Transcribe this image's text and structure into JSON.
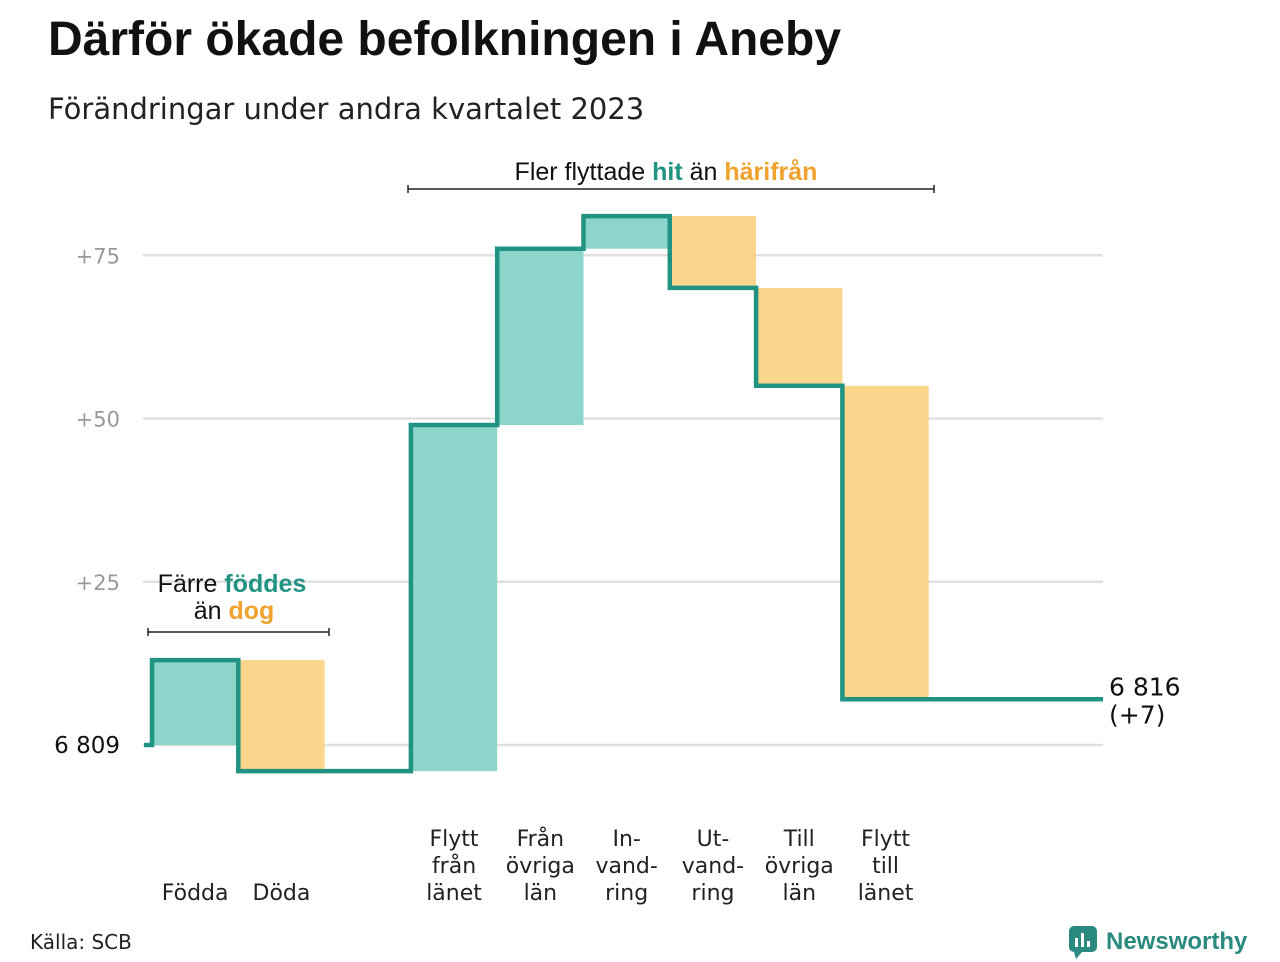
{
  "title": "Därför ökade befolkningen i Aneby",
  "subtitle": "Förändringar under andra kvartalet 2023",
  "source": "Källa: SCB",
  "brand": "Newsworthy",
  "colors": {
    "increase": "#8dd4cb",
    "decrease": "#fad58c",
    "line": "#219383",
    "grid": "#e0e0e0",
    "tick": "#999999",
    "hit": "#219383",
    "harifran": "#f0a22e"
  },
  "annotations": {
    "top": {
      "pre": "Fler flyttade ",
      "hit": "hit",
      "mid": " än ",
      "harifran": "härifrån"
    },
    "left": {
      "line1_pre": "Färre ",
      "line1_hl": "föddes",
      "line2_pre": "än ",
      "line2_hl": "dog"
    }
  },
  "chart_data": {
    "type": "waterfall",
    "title": "Därför ökade befolkningen i Aneby",
    "subtitle": "Förändringar under andra kvartalet 2023",
    "start_label": "6  809",
    "end_label": "6 816",
    "end_change_label": "(+7)",
    "start_value": 6809,
    "end_value": 6816,
    "yticks": [
      {
        "value": 25,
        "label": "+25"
      },
      {
        "value": 50,
        "label": "+50"
      },
      {
        "value": 75,
        "label": "+75"
      }
    ],
    "ylim": [
      -5,
      85
    ],
    "grid": true,
    "steps": [
      {
        "label": [
          "Födda"
        ],
        "change": 13,
        "kind": "increase"
      },
      {
        "label": [
          "Döda"
        ],
        "change": -17,
        "kind": "decrease"
      },
      {
        "label": [],
        "change": 0,
        "kind": "gap"
      },
      {
        "label": [
          "Flytt",
          "från",
          "länet"
        ],
        "change": 53,
        "kind": "increase"
      },
      {
        "label": [
          "Från",
          "övriga",
          "län"
        ],
        "change": 27,
        "kind": "increase"
      },
      {
        "label": [
          "In-",
          "vand-",
          "ring"
        ],
        "change": 5,
        "kind": "increase"
      },
      {
        "label": [
          "Ut-",
          "vand-",
          "ring"
        ],
        "change": -11,
        "kind": "decrease"
      },
      {
        "label": [
          "Till",
          "övriga",
          "län"
        ],
        "change": -15,
        "kind": "decrease"
      },
      {
        "label": [
          "Flytt",
          "till",
          "länet"
        ],
        "change": -48,
        "kind": "decrease"
      }
    ]
  }
}
